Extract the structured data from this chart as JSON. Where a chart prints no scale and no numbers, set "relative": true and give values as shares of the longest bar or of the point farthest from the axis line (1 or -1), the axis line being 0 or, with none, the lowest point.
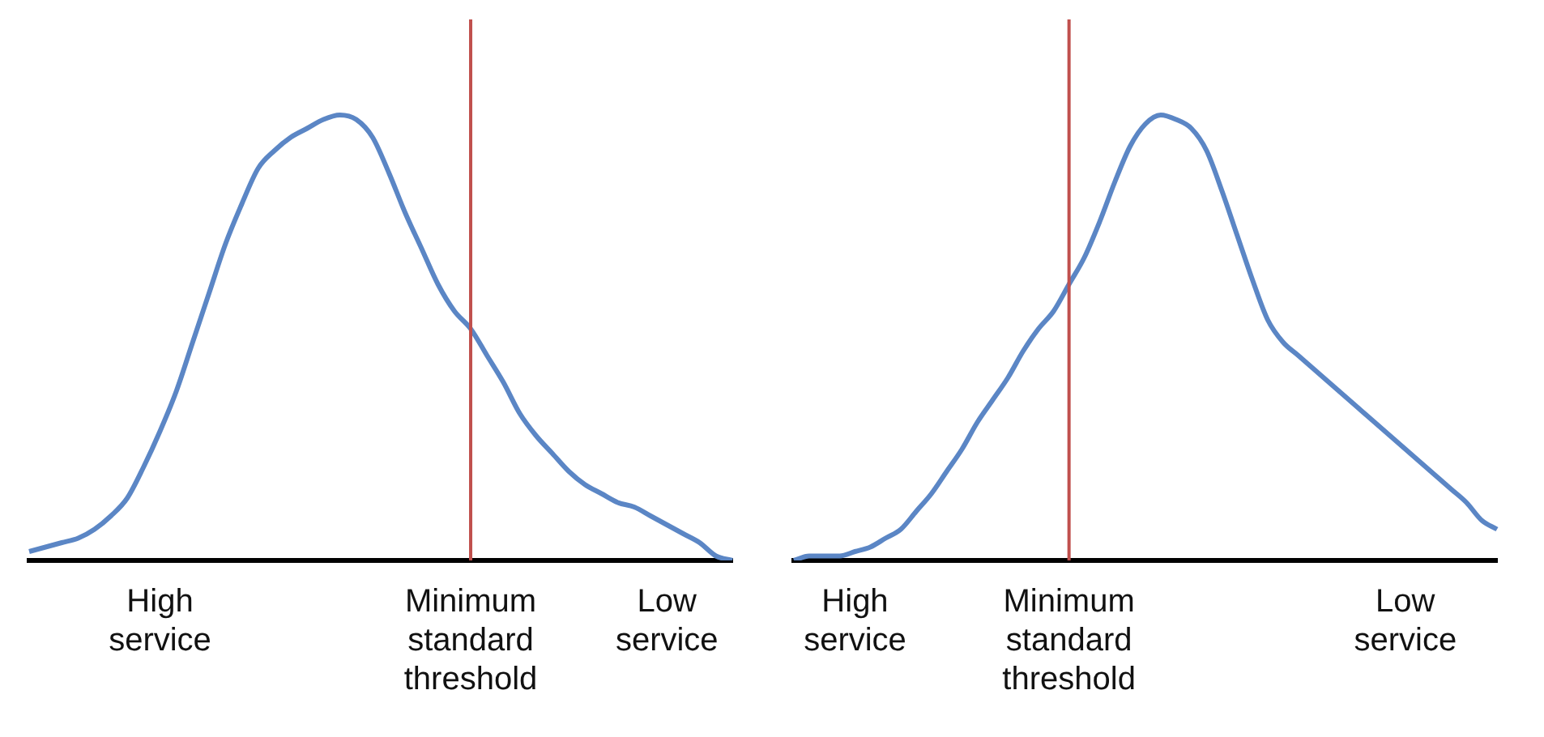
{
  "chart_data": [
    {
      "type": "line",
      "relative": true,
      "grid": false,
      "legend": false,
      "marker": "none",
      "line_style": "solid",
      "categories": [
        null,
        null,
        null,
        null,
        null,
        null,
        null,
        null,
        "High service",
        null,
        null,
        null,
        null,
        null,
        null,
        null,
        null,
        null,
        null,
        null,
        null,
        null,
        null,
        null,
        null,
        null,
        null,
        "Minimum standard threshold",
        null,
        null,
        null,
        null,
        null,
        null,
        null,
        null,
        null,
        null,
        null,
        "Low service",
        null,
        null,
        null,
        null
      ],
      "series": [
        {
          "color": "#5b86c5",
          "values": [
            0.02,
            0.03,
            0.04,
            0.05,
            0.07,
            0.1,
            0.14,
            0.21,
            0.29,
            0.38,
            0.49,
            0.6,
            0.71,
            0.8,
            0.88,
            0.92,
            0.95,
            0.97,
            0.99,
            1,
            0.99,
            0.95,
            0.87,
            0.78,
            0.7,
            0.62,
            0.56,
            0.52,
            0.46,
            0.4,
            0.33,
            0.28,
            0.24,
            0.2,
            0.17,
            0.15,
            0.13,
            0.12,
            0.1,
            0.08,
            0.06,
            0.04,
            0.01,
            0
          ]
        }
      ],
      "ref_lines": [
        {
          "axis": "x",
          "value": "Minimum standard threshold",
          "color": "#c0504d"
        }
      ]
    },
    {
      "type": "line",
      "relative": true,
      "grid": false,
      "legend": false,
      "marker": "none",
      "line_style": "solid",
      "categories": [
        null,
        null,
        null,
        null,
        "High service",
        null,
        null,
        null,
        null,
        null,
        null,
        null,
        null,
        null,
        null,
        null,
        null,
        null,
        "Minimum standard threshold",
        null,
        null,
        null,
        null,
        null,
        null,
        null,
        null,
        null,
        null,
        null,
        null,
        null,
        null,
        null,
        null,
        null,
        null,
        null,
        null,
        null,
        "Low service",
        null,
        null,
        null,
        null,
        null,
        null
      ],
      "series": [
        {
          "color": "#5b86c5",
          "values": [
            0,
            0.01,
            0.01,
            0.01,
            0.02,
            0.03,
            0.05,
            0.07,
            0.11,
            0.15,
            0.2,
            0.25,
            0.31,
            0.36,
            0.41,
            0.47,
            0.52,
            0.56,
            0.62,
            0.68,
            0.76,
            0.85,
            0.93,
            0.98,
            1,
            0.99,
            0.97,
            0.92,
            0.83,
            0.73,
            0.63,
            0.54,
            0.49,
            0.46,
            0.43,
            0.4,
            0.37,
            0.34,
            0.31,
            0.28,
            0.25,
            0.22,
            0.19,
            0.16,
            0.13,
            0.09,
            0.07
          ]
        }
      ],
      "ref_lines": [
        {
          "axis": "x",
          "value": "Minimum standard threshold",
          "color": "#c0504d"
        }
      ]
    }
  ]
}
